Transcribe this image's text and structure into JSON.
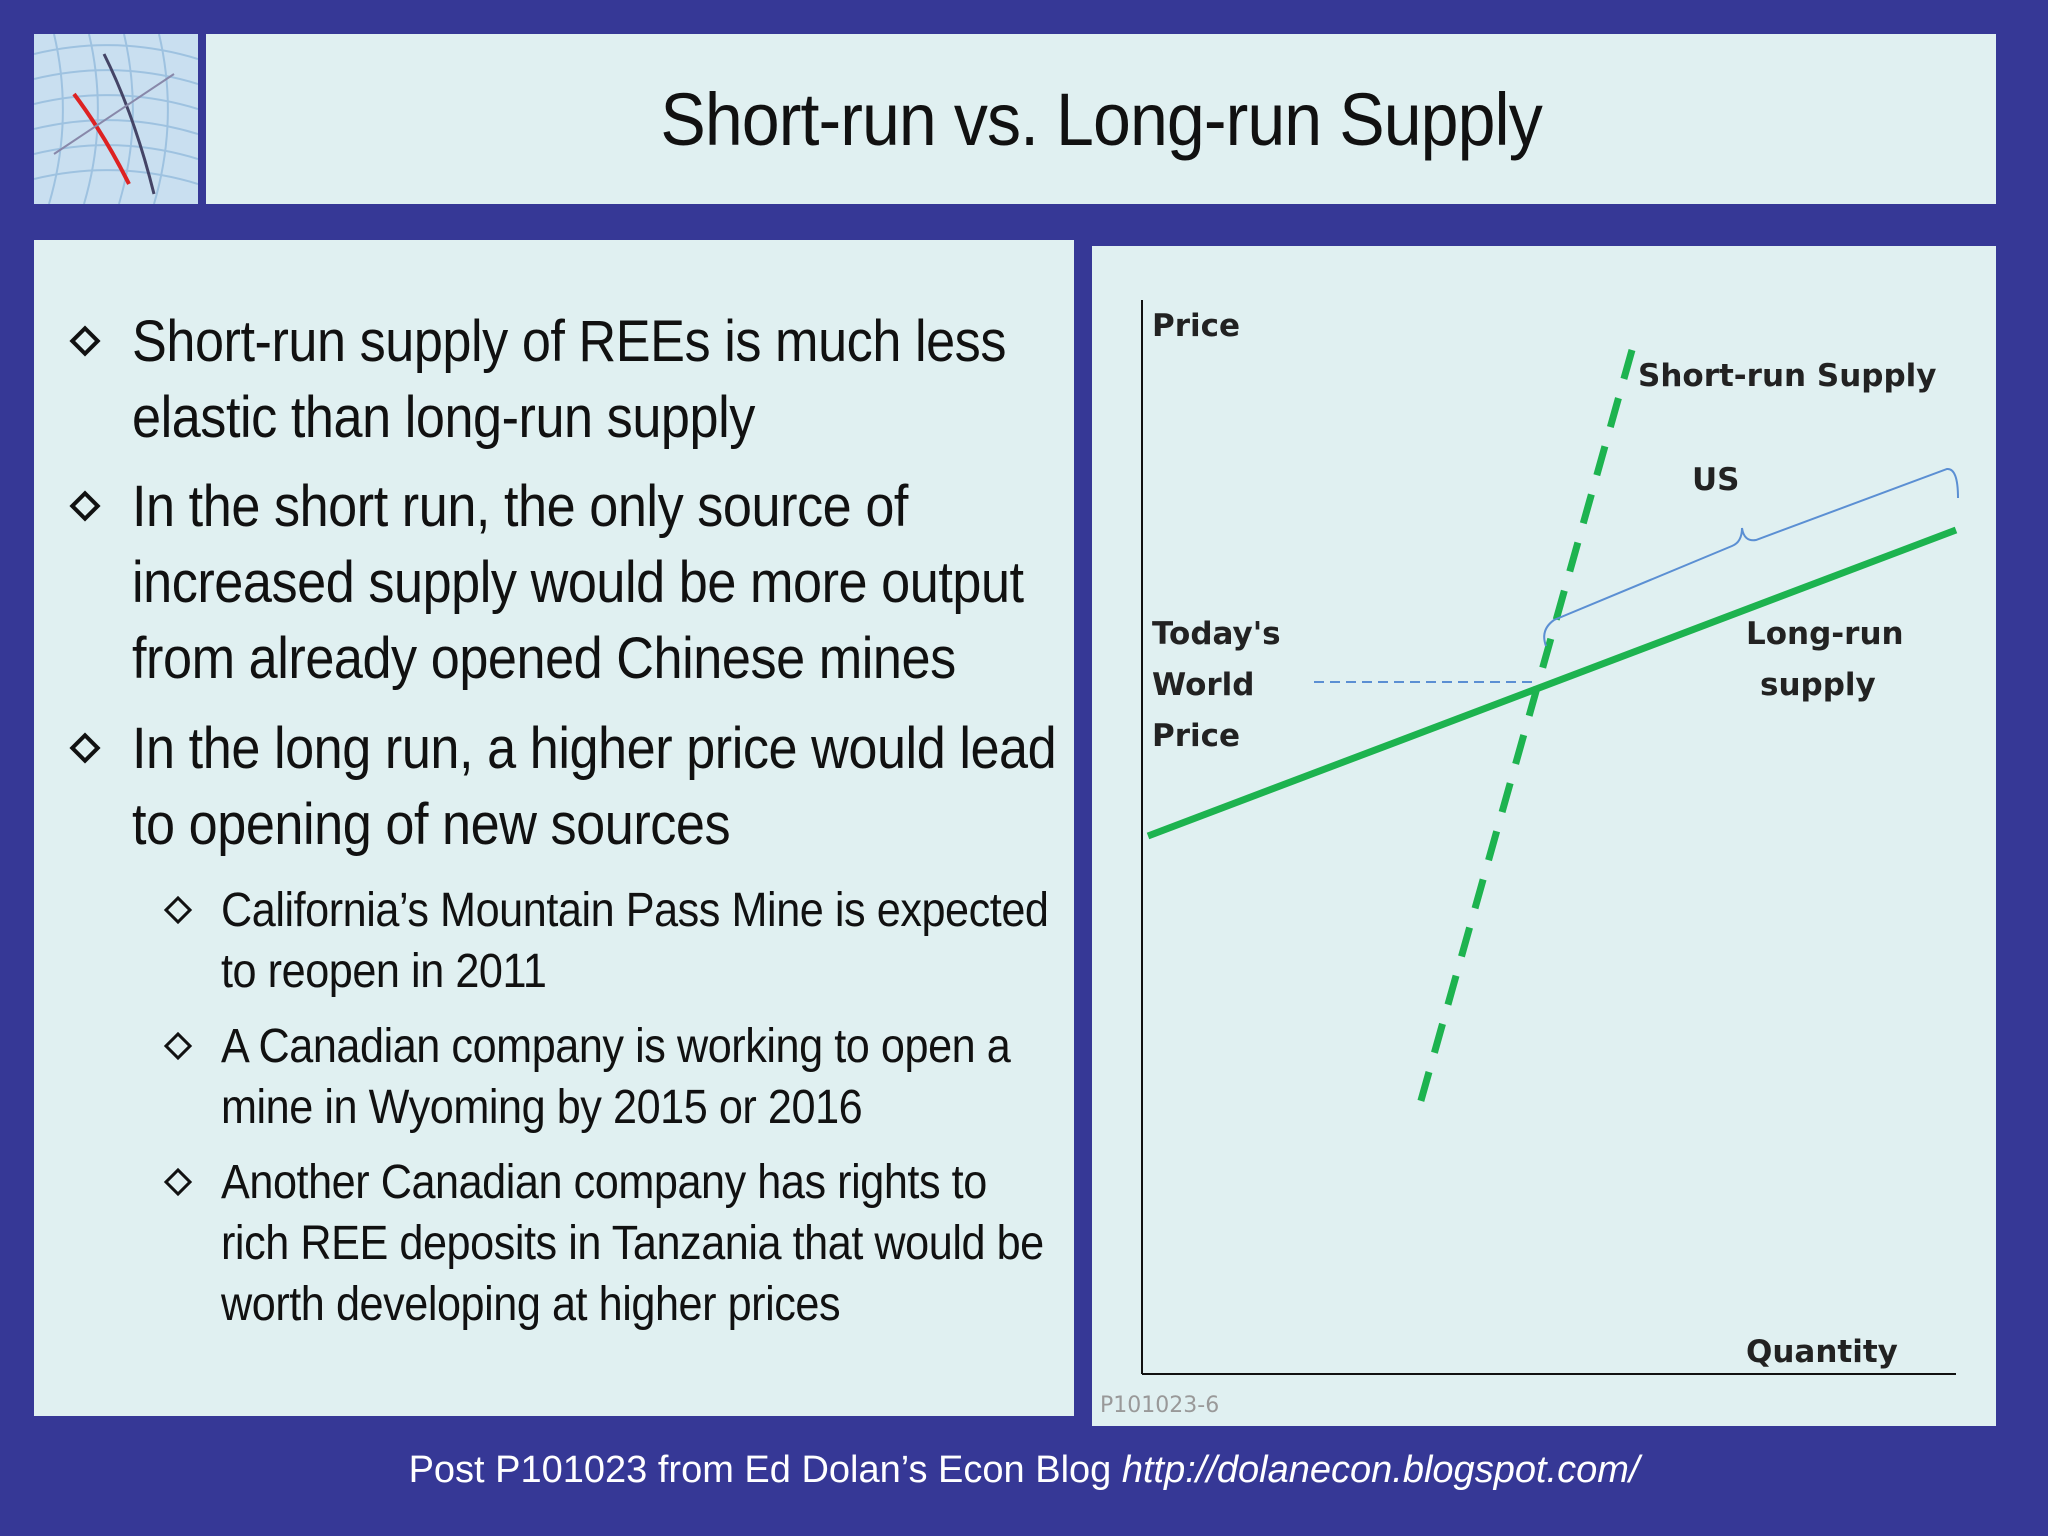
{
  "title": "Short-run vs. Long-run Supply",
  "bullets": {
    "b1": {
      "line1": "Short-run supply of REEs is much less",
      "line2": "elastic than long-run supply"
    },
    "b2": {
      "line1": "In the short run, the only source of",
      "line2": "increased supply would be more output",
      "line3": "from already opened Chinese mines"
    },
    "b3": {
      "line1": "In the long run, a higher price would lead",
      "line2": "to opening of new sources"
    },
    "s1": {
      "line1": "California’s Mountain Pass Mine is expected",
      "line2": "to reopen in 2011"
    },
    "s2": {
      "line1": "A Canadian company is working to open a",
      "line2": "mine in Wyoming by 2015 or 2016"
    },
    "s3": {
      "line1": "Another Canadian company has rights to",
      "line2": "rich REE deposits in Tanzania that would be",
      "line3": "worth developing at higher prices"
    }
  },
  "diagram": {
    "price_axis": "Price",
    "quantity_axis": "Quantity",
    "short_run_label": "Short-run Supply",
    "us_label": "US",
    "world_price": {
      "line1": "Today's",
      "line2": "World",
      "line3": "Price"
    },
    "long_run": {
      "line1": "Long-run",
      "line2": "supply"
    },
    "code": "P101023-6",
    "colors": {
      "supply": "#1db34f",
      "brace": "#5b8fd3",
      "dash": "#5b8fd3"
    }
  },
  "footer": {
    "text": "Post P101023 from Ed Dolan’s Econ Blog",
    "url": "http://dolanecon.blogspot.com/"
  }
}
